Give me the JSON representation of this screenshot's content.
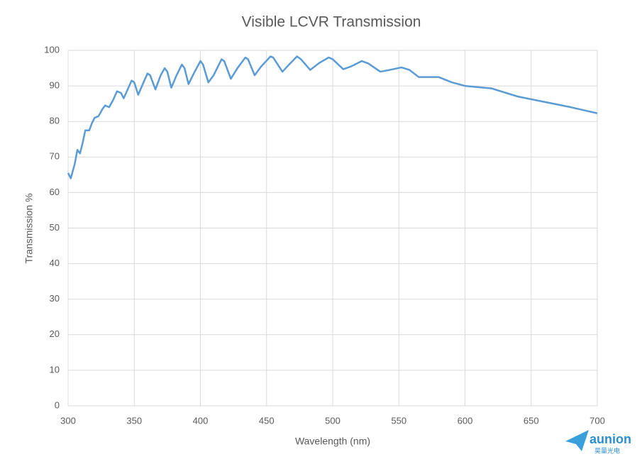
{
  "chart_data": {
    "type": "line",
    "title": "Visible LCVR Transmission",
    "x_label": "Wavelength (nm)",
    "y_label": "Transmission %",
    "x": [
      300,
      302,
      305,
      307,
      309,
      311,
      313,
      316,
      318,
      320,
      323,
      326,
      328,
      331,
      334,
      337,
      340,
      342,
      345,
      348,
      350,
      353,
      357,
      360,
      362,
      366,
      370,
      373,
      375,
      378,
      382,
      386,
      388,
      391,
      395,
      400,
      402,
      406,
      410,
      416,
      418,
      423,
      428,
      434,
      436,
      441,
      446,
      453,
      455,
      462,
      467,
      473,
      476,
      483,
      490,
      497,
      500,
      508,
      514,
      522,
      527,
      536,
      543,
      552,
      558,
      565,
      572,
      580,
      590,
      600,
      620,
      640,
      660,
      680,
      700
    ],
    "series": [
      {
        "name": "Transmission",
        "color": "#5b9bd5",
        "values": [
          65.5,
          64,
          68,
          72,
          71,
          74,
          77.5,
          77.5,
          79.5,
          81,
          81.5,
          83.5,
          84.5,
          84,
          86,
          88.5,
          88,
          86.5,
          89,
          91.5,
          91,
          87.5,
          91,
          93.5,
          93,
          89,
          93,
          95,
          94,
          89.5,
          93,
          96,
          95,
          90.5,
          93.5,
          97,
          96,
          91,
          93,
          97.5,
          97,
          92,
          95,
          98,
          97.5,
          93,
          95.5,
          98.3,
          98,
          94,
          96,
          98.3,
          97.5,
          94.5,
          96.5,
          98,
          97.5,
          94.7,
          95.5,
          97,
          96.3,
          94,
          94.5,
          95.2,
          94.5,
          92.5,
          92.5,
          92.5,
          91,
          90,
          89.3,
          87,
          85.5,
          84,
          82.3
        ]
      }
    ],
    "xlim": [
      300,
      700
    ],
    "xticks": [
      300,
      350,
      400,
      450,
      500,
      550,
      600,
      650,
      700
    ],
    "ylim": [
      0,
      100
    ],
    "yticks": [
      0,
      10,
      20,
      30,
      40,
      50,
      60,
      70,
      80,
      90,
      100
    ],
    "grid": true
  },
  "logo": {
    "name": "aunion",
    "subtitle": "昊量光电"
  }
}
